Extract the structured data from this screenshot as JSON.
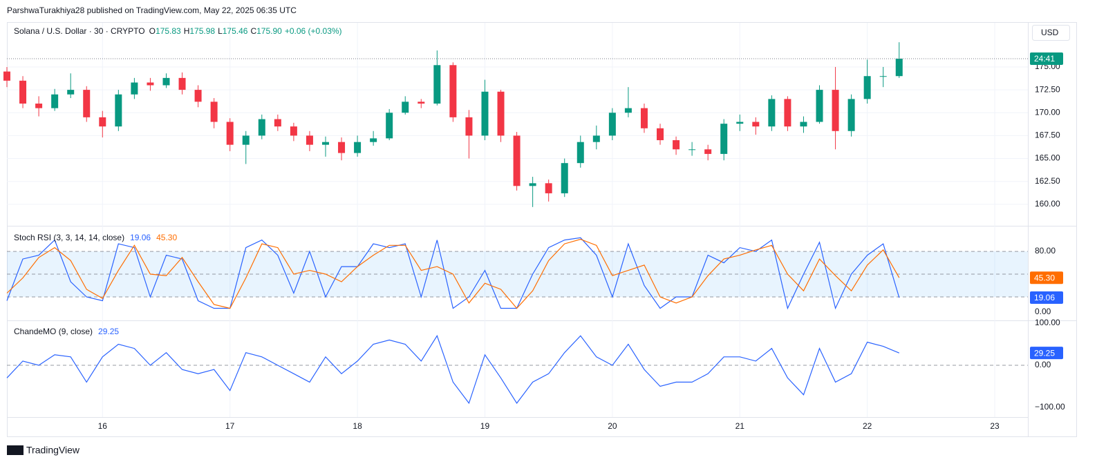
{
  "header": {
    "text": "ParshwaTurakhiya28 published on TradingView.com, May 22, 2025 06:35 UTC"
  },
  "chart_data": [
    {
      "type": "candlestick",
      "title": "Solana / U.S. Dollar · 30 · CRYPTO",
      "quote": [
        {
          "label": "O",
          "value": "175.83"
        },
        {
          "label": "H",
          "value": "175.98"
        },
        {
          "label": "L",
          "value": "175.46"
        },
        {
          "label": "C",
          "value": "175.90"
        }
      ],
      "change": "+0.06 (+0.03%)",
      "currency": "USD",
      "countdown": "24:41",
      "up_color": "#089981",
      "down_color": "#f23645",
      "grid": true,
      "x": [
        15.25,
        15.375,
        15.5,
        15.625,
        15.75,
        15.875,
        16,
        16.125,
        16.25,
        16.375,
        16.5,
        16.625,
        16.75,
        16.875,
        17,
        17.125,
        17.25,
        17.375,
        17.5,
        17.625,
        17.75,
        17.875,
        18,
        18.125,
        18.25,
        18.375,
        18.5,
        18.625,
        18.75,
        18.875,
        19,
        19.125,
        19.25,
        19.375,
        19.5,
        19.625,
        19.75,
        19.875,
        20,
        20.125,
        20.25,
        20.375,
        20.5,
        20.625,
        20.75,
        20.875,
        21,
        21.125,
        21.25,
        21.375,
        21.5,
        21.625,
        21.75,
        21.875,
        22,
        22.125,
        22.25
      ],
      "open": [
        174.5,
        173.5,
        171.0,
        170.5,
        172.0,
        172.5,
        169.5,
        168.5,
        172.0,
        173.3,
        173.0,
        173.8,
        172.5,
        171.2,
        169.0,
        166.5,
        167.5,
        169.3,
        168.5,
        167.5,
        166.5,
        166.8,
        165.6,
        166.8,
        167.2,
        170.0,
        171.2,
        171.0,
        175.2,
        169.5,
        167.5,
        172.3,
        167.5,
        162.0,
        162.3,
        161.2,
        164.5,
        166.8,
        167.5,
        170.0,
        170.5,
        168.3,
        167.0,
        166.0,
        166.0,
        165.5,
        168.8,
        169.0,
        168.5,
        171.5,
        168.5,
        169.0,
        172.5,
        168.0,
        171.5,
        174.0,
        174.0
      ],
      "high": [
        175.0,
        174.0,
        171.8,
        172.6,
        174.3,
        172.9,
        170.2,
        172.5,
        173.8,
        173.8,
        174.3,
        174.4,
        173.0,
        171.6,
        169.4,
        168.0,
        169.8,
        169.8,
        168.9,
        168.0,
        167.4,
        167.3,
        167.5,
        168.0,
        170.4,
        171.8,
        171.5,
        176.8,
        175.5,
        170.3,
        173.6,
        172.5,
        167.9,
        163.0,
        162.7,
        165.0,
        167.5,
        168.6,
        170.5,
        172.8,
        171.0,
        168.8,
        167.4,
        166.8,
        166.5,
        169.3,
        169.8,
        169.5,
        171.9,
        171.8,
        169.6,
        173.0,
        175.0,
        172.0,
        175.8,
        175.0,
        177.7
      ],
      "low": [
        172.8,
        170.5,
        169.6,
        170.2,
        171.6,
        169.0,
        167.3,
        168.0,
        171.5,
        172.4,
        172.7,
        172.0,
        170.6,
        168.3,
        165.8,
        164.4,
        167.1,
        168.0,
        166.9,
        165.8,
        165.2,
        164.8,
        165.2,
        166.4,
        167.0,
        169.8,
        170.5,
        170.8,
        169.0,
        165.0,
        167.0,
        166.8,
        161.5,
        159.7,
        160.3,
        160.8,
        164.0,
        166.0,
        167.0,
        169.5,
        167.8,
        166.5,
        165.4,
        165.3,
        164.8,
        164.8,
        168.0,
        167.6,
        168.0,
        168.0,
        167.8,
        168.8,
        166.0,
        167.4,
        171.0,
        172.8,
        173.8
      ],
      "close": [
        173.5,
        171.0,
        170.5,
        172.0,
        172.5,
        169.5,
        168.5,
        172.0,
        173.3,
        173.0,
        173.8,
        172.5,
        171.2,
        169.0,
        166.5,
        167.5,
        169.3,
        168.5,
        167.5,
        166.5,
        166.8,
        165.6,
        166.8,
        167.2,
        170.0,
        171.2,
        171.0,
        175.2,
        169.5,
        167.5,
        172.3,
        167.5,
        162.0,
        162.3,
        161.2,
        164.5,
        166.8,
        167.5,
        170.0,
        170.5,
        168.3,
        167.0,
        166.0,
        166.0,
        165.5,
        168.8,
        169.0,
        168.5,
        171.5,
        168.5,
        169.0,
        172.5,
        168.0,
        171.5,
        174.0,
        174.0,
        175.9
      ],
      "ylim": [
        157.8,
        179.9
      ],
      "yticks": [
        {
          "value": 160,
          "label": "160.00"
        },
        {
          "value": 162.5,
          "label": "162.50"
        },
        {
          "value": 165,
          "label": "165.00"
        },
        {
          "value": 167.5,
          "label": "167.50"
        },
        {
          "value": 170,
          "label": "170.00"
        },
        {
          "value": 172.5,
          "label": "172.50"
        },
        {
          "value": 175,
          "label": "175.00"
        }
      ]
    },
    {
      "type": "line",
      "title": "Stoch RSI (3, 3, 14, 14, close)",
      "band": [
        20,
        80
      ],
      "band_color": "rgba(33,150,243,0.1)",
      "hlines": [
        80,
        50,
        20
      ],
      "series": [
        {
          "name": "K",
          "color": "#2962ff",
          "values": [
            15,
            70,
            75,
            95,
            40,
            20,
            15,
            90,
            85,
            20,
            75,
            70,
            15,
            5,
            5,
            85,
            95,
            75,
            25,
            80,
            20,
            60,
            60,
            90,
            85,
            90,
            20,
            95,
            5,
            20,
            55,
            5,
            5,
            50,
            85,
            95,
            98,
            75,
            20,
            90,
            35,
            5,
            20,
            20,
            75,
            65,
            85,
            80,
            95,
            5,
            50,
            92,
            5,
            50,
            75,
            90,
            19.06
          ]
        },
        {
          "name": "D",
          "color": "#ff6d00",
          "values": [
            25,
            45,
            72,
            85,
            68,
            30,
            18,
            55,
            88,
            50,
            48,
            72,
            40,
            10,
            5,
            45,
            90,
            85,
            50,
            55,
            50,
            40,
            60,
            75,
            88,
            88,
            55,
            60,
            50,
            12,
            38,
            30,
            5,
            28,
            68,
            90,
            96,
            88,
            48,
            55,
            62,
            20,
            12,
            20,
            48,
            70,
            75,
            82,
            88,
            50,
            28,
            70,
            48,
            28,
            62,
            82,
            45.3
          ],
          "value_labels": [
            null,
            null,
            null,
            null,
            null,
            null,
            null,
            null,
            null,
            null,
            null,
            null,
            null,
            null,
            null,
            null,
            null,
            null,
            null,
            null,
            null,
            null,
            null,
            null,
            null,
            null,
            null,
            null,
            null,
            null,
            null,
            null,
            null,
            null,
            null,
            null,
            null,
            null,
            null,
            null,
            null,
            null,
            null,
            null,
            null,
            null,
            null,
            null,
            null,
            null,
            null,
            null,
            null,
            null,
            null,
            null,
            "45.30"
          ]
        }
      ],
      "ylim": [
        -10,
        111
      ],
      "yticks": [
        {
          "value": 80,
          "label": "80.00"
        },
        {
          "value": 0,
          "label": "0.00"
        }
      ]
    },
    {
      "type": "line",
      "title": "ChandeMO (9, close)",
      "hlines": [
        0
      ],
      "series": [
        {
          "name": "CMO",
          "color": "#2962ff",
          "values": [
            -30,
            10,
            0,
            25,
            20,
            -40,
            20,
            50,
            40,
            0,
            30,
            -10,
            -20,
            -10,
            -60,
            30,
            20,
            0,
            -20,
            -40,
            20,
            -20,
            10,
            50,
            60,
            50,
            10,
            70,
            -40,
            -90,
            25,
            -30,
            -90,
            -40,
            -20,
            30,
            70,
            20,
            0,
            50,
            -10,
            -50,
            -40,
            -40,
            -20,
            20,
            20,
            10,
            40,
            -30,
            -70,
            40,
            -40,
            -20,
            55,
            45,
            29.25
          ]
        }
      ],
      "ylim": [
        -123,
        105
      ],
      "yticks": [
        {
          "value": 100,
          "label": "100.00"
        },
        {
          "value": 0,
          "label": "0.00"
        },
        {
          "value": -100,
          "label": "−100.00"
        }
      ],
      "xlim": [
        15.25,
        23.26
      ],
      "xticks": [
        16,
        17,
        18,
        19,
        20,
        21,
        22,
        23
      ]
    }
  ],
  "footer": {
    "logo": "TradingView"
  }
}
